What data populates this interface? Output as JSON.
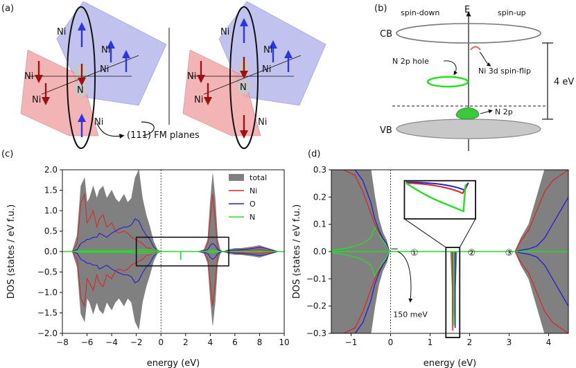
{
  "panels": {
    "a": {
      "label": "(a)",
      "atom_ni": "Ni",
      "atom_n": "N",
      "fm_planes": "(111) FM planes"
    },
    "b": {
      "label": "(b)",
      "spin_down": "spin-down",
      "energy_axis": "E",
      "spin_up": "spin-up",
      "cb": "CB",
      "vb": "VB",
      "n2p_hole": "N 2p hole",
      "ni3d_flip": "Ni 3d spin-flip",
      "gap": "4 eV",
      "n2p": "N 2p"
    },
    "c": {
      "label": "(c)"
    },
    "d": {
      "label": "(d)",
      "marker1": "①",
      "marker2": "②",
      "marker3": "③",
      "splitting": "150 meV"
    }
  },
  "colors": {
    "total": "#808080",
    "ni": "#d62728",
    "o": "#1f1fd6",
    "n": "#22e022",
    "blue_plane": "#b8b8ec",
    "red_plane": "#f0a8a8",
    "arrow_blue": "#2a35e8",
    "arrow_red": "#a01010"
  },
  "chart_data": [
    {
      "panel": "c",
      "type": "area",
      "title": "",
      "xlabel": "energy (eV)",
      "ylabel": "DOS (states / eV f.u.)",
      "xlim": [
        -8,
        10
      ],
      "ylim": [
        -2.0,
        2.0
      ],
      "xticks": [
        -8,
        -6,
        -4,
        -2,
        0,
        2,
        4,
        6,
        8,
        10
      ],
      "yticks": [
        -2.0,
        -1.5,
        -1.0,
        -0.5,
        0.0,
        0.5,
        1.0,
        1.5,
        2.0
      ],
      "x_tick_labels": [
        "−8",
        "−6",
        "−4",
        "−2",
        "0",
        "2",
        "4",
        "6",
        "8",
        "10"
      ],
      "y_tick_labels": [
        "−2.0",
        "−1.5",
        "−1.0",
        "−0.5",
        "0.0",
        "0.5",
        "1.0",
        "1.5",
        "2.0"
      ],
      "legend": [
        "total",
        "Ni",
        "O",
        "N"
      ],
      "legend_position": "top-right",
      "fermi_level": 0,
      "x": [
        -7.2,
        -6.8,
        -6.5,
        -6.2,
        -6.0,
        -5.8,
        -5.5,
        -5.2,
        -5.0,
        -4.7,
        -4.4,
        -4.0,
        -3.7,
        -3.4,
        -3.0,
        -2.7,
        -2.4,
        -2.1,
        -1.8,
        -1.5,
        -1.2,
        -0.9,
        -0.6,
        -0.3,
        0.0,
        0.5,
        1.0,
        1.5,
        2.0,
        2.5,
        3.0,
        3.5,
        3.8,
        4.0,
        4.2,
        4.4,
        4.6,
        4.8,
        5.0,
        5.5,
        6.0,
        6.5,
        7.0,
        7.5,
        8.0,
        8.5,
        9.0,
        9.5
      ],
      "series": [
        {
          "name": "total",
          "values": [
            0.0,
            0.4,
            1.6,
            1.8,
            1.2,
            1.3,
            1.6,
            1.3,
            1.5,
            1.6,
            1.3,
            1.5,
            1.3,
            1.2,
            1.4,
            1.2,
            1.3,
            1.8,
            2.0,
            1.3,
            0.9,
            0.6,
            0.25,
            0.05,
            0.0,
            0.0,
            0.0,
            0.0,
            0.0,
            0.0,
            0.0,
            0.05,
            0.3,
            1.2,
            1.9,
            1.3,
            0.3,
            0.05,
            0.0,
            0.05,
            0.08,
            0.08,
            0.1,
            0.12,
            0.15,
            0.1,
            0.05,
            0.0
          ]
        },
        {
          "name": "Ni",
          "values": [
            0.0,
            0.2,
            1.2,
            1.4,
            0.7,
            0.8,
            1.0,
            0.6,
            0.8,
            0.9,
            0.6,
            0.7,
            0.5,
            0.45,
            0.5,
            0.45,
            0.35,
            0.3,
            0.25,
            0.2,
            0.1,
            0.08,
            0.05,
            0.02,
            0.0,
            0.0,
            0.0,
            0.0,
            0.0,
            0.0,
            0.0,
            0.02,
            0.2,
            0.8,
            1.4,
            0.8,
            0.1,
            0.02,
            0.0,
            0.02,
            0.03,
            0.03,
            0.04,
            0.04,
            0.05,
            0.03,
            0.02,
            0.0
          ]
        },
        {
          "name": "O",
          "values": [
            0.0,
            0.05,
            0.2,
            0.25,
            0.3,
            0.3,
            0.35,
            0.35,
            0.45,
            0.4,
            0.35,
            0.45,
            0.5,
            0.55,
            0.6,
            0.6,
            0.65,
            0.8,
            0.75,
            0.55,
            0.4,
            0.3,
            0.12,
            0.03,
            0.0,
            0.0,
            0.0,
            0.0,
            0.0,
            0.0,
            0.0,
            0.02,
            0.05,
            0.15,
            0.2,
            0.15,
            0.05,
            0.02,
            0.0,
            0.02,
            0.04,
            0.05,
            0.06,
            0.08,
            0.1,
            0.08,
            0.04,
            0.0
          ]
        },
        {
          "name": "N",
          "values": [
            0.0,
            0.01,
            0.02,
            0.02,
            0.02,
            0.02,
            0.02,
            0.02,
            0.02,
            0.02,
            0.02,
            0.02,
            0.02,
            0.02,
            0.02,
            0.02,
            0.03,
            0.04,
            0.05,
            0.04,
            0.04,
            0.05,
            0.06,
            0.03,
            0.0,
            0.0,
            0.0,
            0.0,
            0.0,
            0.0,
            0.0,
            0.0,
            0.01,
            0.02,
            0.03,
            0.02,
            0.01,
            0.0,
            0.0,
            0.0,
            0.0,
            0.0,
            0.0,
            0.0,
            0.0,
            0.0,
            0.0,
            0.0
          ]
        }
      ],
      "minority_spin_scale": 0.95,
      "n_minority_spike": {
        "x": 1.6,
        "value": -0.2
      },
      "zoom_box_data": {
        "x": [
          -2.0,
          5.5
        ],
        "y": [
          -0.35,
          0.35
        ]
      }
    },
    {
      "panel": "d",
      "type": "area",
      "title": "",
      "xlabel": "energy (eV)",
      "ylabel": "DOS (states / eV f.u.)",
      "xlim": [
        -1.5,
        4.5
      ],
      "ylim": [
        -0.3,
        0.3
      ],
      "xticks": [
        -1,
        0,
        1,
        2,
        3,
        4
      ],
      "yticks": [
        -0.3,
        -0.2,
        -0.1,
        0.0,
        0.1,
        0.2,
        0.3
      ],
      "x_tick_labels": [
        "−1",
        "0",
        "1",
        "2",
        "3",
        "4"
      ],
      "y_tick_labels": [
        "−0.3",
        "−0.2",
        "−0.1",
        "0.0",
        "0.1",
        "0.2",
        "0.3"
      ],
      "fermi_level": 0,
      "gap_region": [
        0.0,
        3.15
      ],
      "valence_edge_up": {
        "x": [
          -1.5,
          -1.2,
          -0.9,
          -0.7,
          -0.6,
          -0.5,
          -0.4,
          -0.3,
          -0.2,
          -0.1,
          -0.03
        ],
        "total": [
          0.3,
          0.3,
          0.3,
          0.3,
          0.3,
          0.3,
          0.2,
          0.12,
          0.07,
          0.04,
          0.0
        ],
        "ni": [
          0.3,
          0.3,
          0.28,
          0.22,
          0.18,
          0.14,
          0.1,
          0.07,
          0.05,
          0.03,
          0.0
        ],
        "o": [
          0.3,
          0.3,
          0.3,
          0.26,
          0.22,
          0.18,
          0.12,
          0.08,
          0.05,
          0.03,
          0.0
        ],
        "n": [
          0.005,
          0.01,
          0.02,
          0.03,
          0.04,
          0.05,
          0.09,
          0.06,
          0.04,
          0.02,
          0.0
        ]
      },
      "conduction_edge_up": {
        "x": [
          3.15,
          3.3,
          3.5,
          3.7,
          3.9,
          4.1,
          4.3,
          4.5
        ],
        "total": [
          0.0,
          0.05,
          0.1,
          0.2,
          0.3,
          0.3,
          0.3,
          0.3
        ],
        "ni": [
          0.0,
          0.04,
          0.08,
          0.15,
          0.22,
          0.26,
          0.28,
          0.3
        ],
        "o": [
          0.0,
          0.005,
          0.01,
          0.02,
          0.05,
          0.1,
          0.15,
          0.2
        ],
        "n": [
          0.0,
          0.002,
          0.005,
          0.008,
          0.01,
          0.01,
          0.01,
          0.01
        ]
      },
      "in_gap_state_down": {
        "x": 1.6,
        "total": -0.3,
        "ni": -0.29,
        "o": -0.28,
        "n": -0.27
      },
      "inset_box_data": {
        "x": [
          1.4,
          1.75
        ],
        "y": [
          -0.3,
          0.0
        ]
      },
      "inset_panel_data": {
        "x": [
          0.35,
          2.15
        ],
        "y": [
          0.12,
          0.26
        ]
      }
    }
  ]
}
